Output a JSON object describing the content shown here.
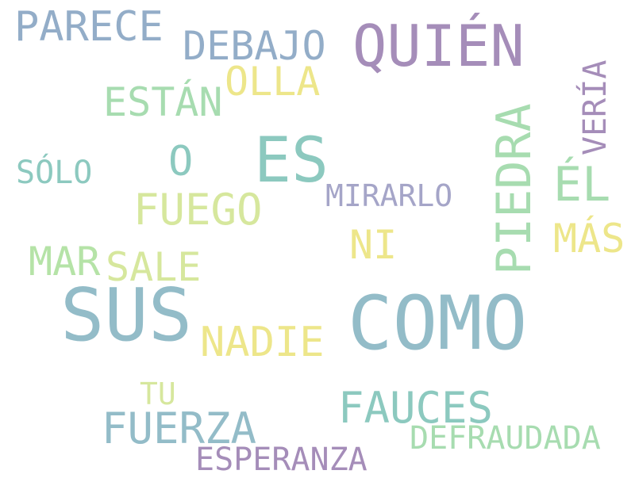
{
  "words": [
    {
      "id": "parece",
      "text": "PARECE",
      "color": "#93adc8"
    },
    {
      "id": "debajo",
      "text": "DEBAJO",
      "color": "#93adc8"
    },
    {
      "id": "quien",
      "text": "QUIÉN",
      "color": "#a58db9"
    },
    {
      "id": "olla",
      "text": "OLLA",
      "color": "#ede68a"
    },
    {
      "id": "estan",
      "text": "ESTÁN",
      "color": "#a7dcb0"
    },
    {
      "id": "veria",
      "text": "VERÍA",
      "color": "#a58db9"
    },
    {
      "id": "piedra",
      "text": "PIEDRA",
      "color": "#a7dcb0"
    },
    {
      "id": "o",
      "text": "O",
      "color": "#8cc9bf"
    },
    {
      "id": "es",
      "text": "ES",
      "color": "#8cc9bf"
    },
    {
      "id": "solo",
      "text": "SÓLO",
      "color": "#8cc9bf"
    },
    {
      "id": "el",
      "text": "ÉL",
      "color": "#a7dcb0"
    },
    {
      "id": "mirarlo",
      "text": "MIRARLO",
      "color": "#a5a5c8"
    },
    {
      "id": "fuego",
      "text": "FUEGO",
      "color": "#d6e79d"
    },
    {
      "id": "ni",
      "text": "NI",
      "color": "#ede68a"
    },
    {
      "id": "mas",
      "text": "MÁS",
      "color": "#ede68a"
    },
    {
      "id": "mar",
      "text": "MAR",
      "color": "#b5e3a7"
    },
    {
      "id": "sale",
      "text": "SALE",
      "color": "#d6e79d"
    },
    {
      "id": "sus",
      "text": "SUS",
      "color": "#93bcc8"
    },
    {
      "id": "como",
      "text": "COMO",
      "color": "#93bcc8"
    },
    {
      "id": "nadie",
      "text": "NADIE",
      "color": "#ede68a"
    },
    {
      "id": "tu",
      "text": "TU",
      "color": "#d6e79d"
    },
    {
      "id": "fauces",
      "text": "FAUCES",
      "color": "#8cc9bf"
    },
    {
      "id": "fuerza",
      "text": "FUERZA",
      "color": "#93bcc8"
    },
    {
      "id": "defraudada",
      "text": "DEFRAUDADA",
      "color": "#a7dcb0"
    },
    {
      "id": "esperanza",
      "text": "ESPERANZA",
      "color": "#a58db9"
    }
  ]
}
